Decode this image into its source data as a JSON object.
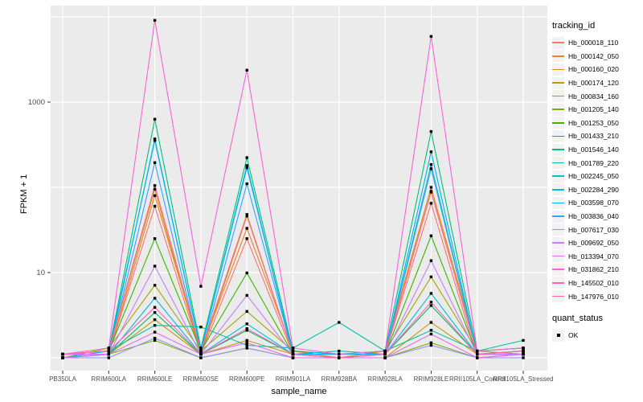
{
  "figure": {
    "x_axis_title": "sample_name",
    "y_axis_title": "FPKM + 1",
    "legend_tracking_title": "tracking_id",
    "legend_quant_title": "quant_status",
    "legend_quant_item": "OK"
  },
  "chart_data": {
    "type": "line",
    "x_type": "categorical",
    "title": "",
    "xlabel": "sample_name",
    "ylabel": "FPKM + 1",
    "y_scale": "log10",
    "ylim": [
      0.707,
      13550
    ],
    "y_ticks": [
      {
        "value": 1000,
        "label": "1000"
      },
      {
        "value": 10,
        "label": "10"
      }
    ],
    "gridlines_y_values": [
      1,
      10,
      100,
      1000,
      10000
    ],
    "grid_on": true,
    "legend_position": "right",
    "panel_bg": "#ebebeb",
    "grid_color": "#ffffff",
    "point_color": "#000000",
    "tick_color": "#333333",
    "categories": [
      "PB350LA",
      "RRIM600LA",
      "RRIM600LE",
      "RRIM600SE",
      "RRIM600PE",
      "RRIM901LA",
      "RRIM928BA",
      "RRIM928LA",
      "RRIM928LE",
      "RRII105LA_Control",
      "RRII105LA_Stressed"
    ],
    "series": [
      {
        "name": "Hb_000018_110",
        "color": "#F8766D",
        "values": [
          1.0,
          1.1,
          60,
          1.1,
          25,
          1.1,
          1.0,
          1.1,
          65,
          1.0,
          1.1
        ]
      },
      {
        "name": "Hb_000142_050",
        "color": "#EA8331",
        "values": [
          1.0,
          1.1,
          80,
          1.2,
          33,
          1.2,
          1.0,
          1.1,
          90,
          1.1,
          1.2
        ]
      },
      {
        "name": "Hb_000160_020",
        "color": "#D89000",
        "values": [
          1.1,
          1.2,
          95,
          1.1,
          46,
          1.1,
          1.0,
          1.2,
          100,
          1.2,
          1.1
        ]
      },
      {
        "name": "Hb_000174_120",
        "color": "#C09B00",
        "values": [
          1.0,
          1.1,
          2.8,
          1.1,
          1.6,
          1.1,
          1.0,
          1.0,
          2.6,
          1.1,
          1.1
        ]
      },
      {
        "name": "Hb_000834_160",
        "color": "#A3A500",
        "values": [
          1.0,
          1.3,
          7.1,
          1.2,
          3.5,
          1.2,
          1.1,
          1.2,
          8.9,
          1.2,
          1.3
        ]
      },
      {
        "name": "Hb_001205_140",
        "color": "#7CAE00",
        "values": [
          1.0,
          1.1,
          1.6,
          1.0,
          1.3,
          1.0,
          1.0,
          1.0,
          1.5,
          1.0,
          1.1
        ]
      },
      {
        "name": "Hb_001253_050",
        "color": "#39B600",
        "values": [
          1.1,
          1.2,
          25,
          1.2,
          9.9,
          1.1,
          1.1,
          1.1,
          27,
          1.1,
          1.2
        ]
      },
      {
        "name": "Hb_001433_210",
        "color": "#00BB4E",
        "values": [
          1.0,
          1.1,
          3.4,
          1.1,
          2.1,
          1.1,
          1.0,
          1.1,
          4.1,
          1.1,
          1.1
        ]
      },
      {
        "name": "Hb_001546_140",
        "color": "#00BF7D",
        "values": [
          1.1,
          1.2,
          630,
          1.3,
          223,
          1.2,
          1.1,
          1.2,
          452,
          1.2,
          1.3
        ]
      },
      {
        "name": "Hb_001789_220",
        "color": "#00C1A3",
        "values": [
          1.1,
          1.2,
          2.4,
          2.3,
          1.4,
          1.3,
          2.6,
          1.2,
          2.1,
          1.2,
          1.6
        ]
      },
      {
        "name": "Hb_002245_050",
        "color": "#00BFC4",
        "values": [
          1.0,
          1.1,
          370,
          1.2,
          180,
          1.1,
          1.0,
          1.1,
          185,
          1.1,
          1.1
        ]
      },
      {
        "name": "Hb_002284_290",
        "color": "#00BBDA",
        "values": [
          1.1,
          1.1,
          5.0,
          1.1,
          2.5,
          1.1,
          1.2,
          1.1,
          5.7,
          1.1,
          1.2
        ]
      },
      {
        "name": "Hb_003598_070",
        "color": "#00B0F6",
        "values": [
          1.0,
          1.2,
          355,
          1.2,
          170,
          1.1,
          1.1,
          1.1,
          261,
          1.1,
          1.2
        ]
      },
      {
        "name": "Hb_003836_040",
        "color": "#35A2FF",
        "values": [
          1.1,
          1.1,
          195,
          1.1,
          110,
          1.1,
          1.0,
          1.1,
          165,
          1.1,
          1.1
        ]
      },
      {
        "name": "Hb_007617_030",
        "color": "#9590FF",
        "values": [
          1.0,
          1.0,
          1.7,
          1.0,
          1.3,
          1.0,
          1.0,
          1.0,
          1.4,
          1.0,
          1.0
        ]
      },
      {
        "name": "Hb_009692_050",
        "color": "#C77CFF",
        "values": [
          1.1,
          1.1,
          11.9,
          1.1,
          5.4,
          1.1,
          1.0,
          1.1,
          13.8,
          1.1,
          1.1
        ]
      },
      {
        "name": "Hb_013394_070",
        "color": "#E76BF3",
        "values": [
          1.0,
          1.1,
          2.0,
          1.1,
          1.5,
          1.0,
          1.0,
          1.0,
          1.9,
          1.0,
          1.1
        ]
      },
      {
        "name": "Hb_031862_210",
        "color": "#FA62DB",
        "values": [
          1.1,
          1.3,
          9100,
          6.9,
          2370,
          1.3,
          1.1,
          1.2,
          5900,
          1.2,
          1.3
        ]
      },
      {
        "name": "Hb_145502_010",
        "color": "#FF62BC",
        "values": [
          1.1,
          1.2,
          3.9,
          1.1,
          2.2,
          1.1,
          1.0,
          1.1,
          4.5,
          1.1,
          1.2
        ]
      },
      {
        "name": "Hb_147976_010",
        "color": "#FF6A98",
        "values": [
          1.1,
          1.2,
          105,
          1.2,
          48,
          1.1,
          1.0,
          1.1,
          88,
          1.1,
          1.2
        ]
      }
    ],
    "quant_status_series": [
      {
        "name": "OK",
        "marker": "black-square"
      }
    ]
  }
}
